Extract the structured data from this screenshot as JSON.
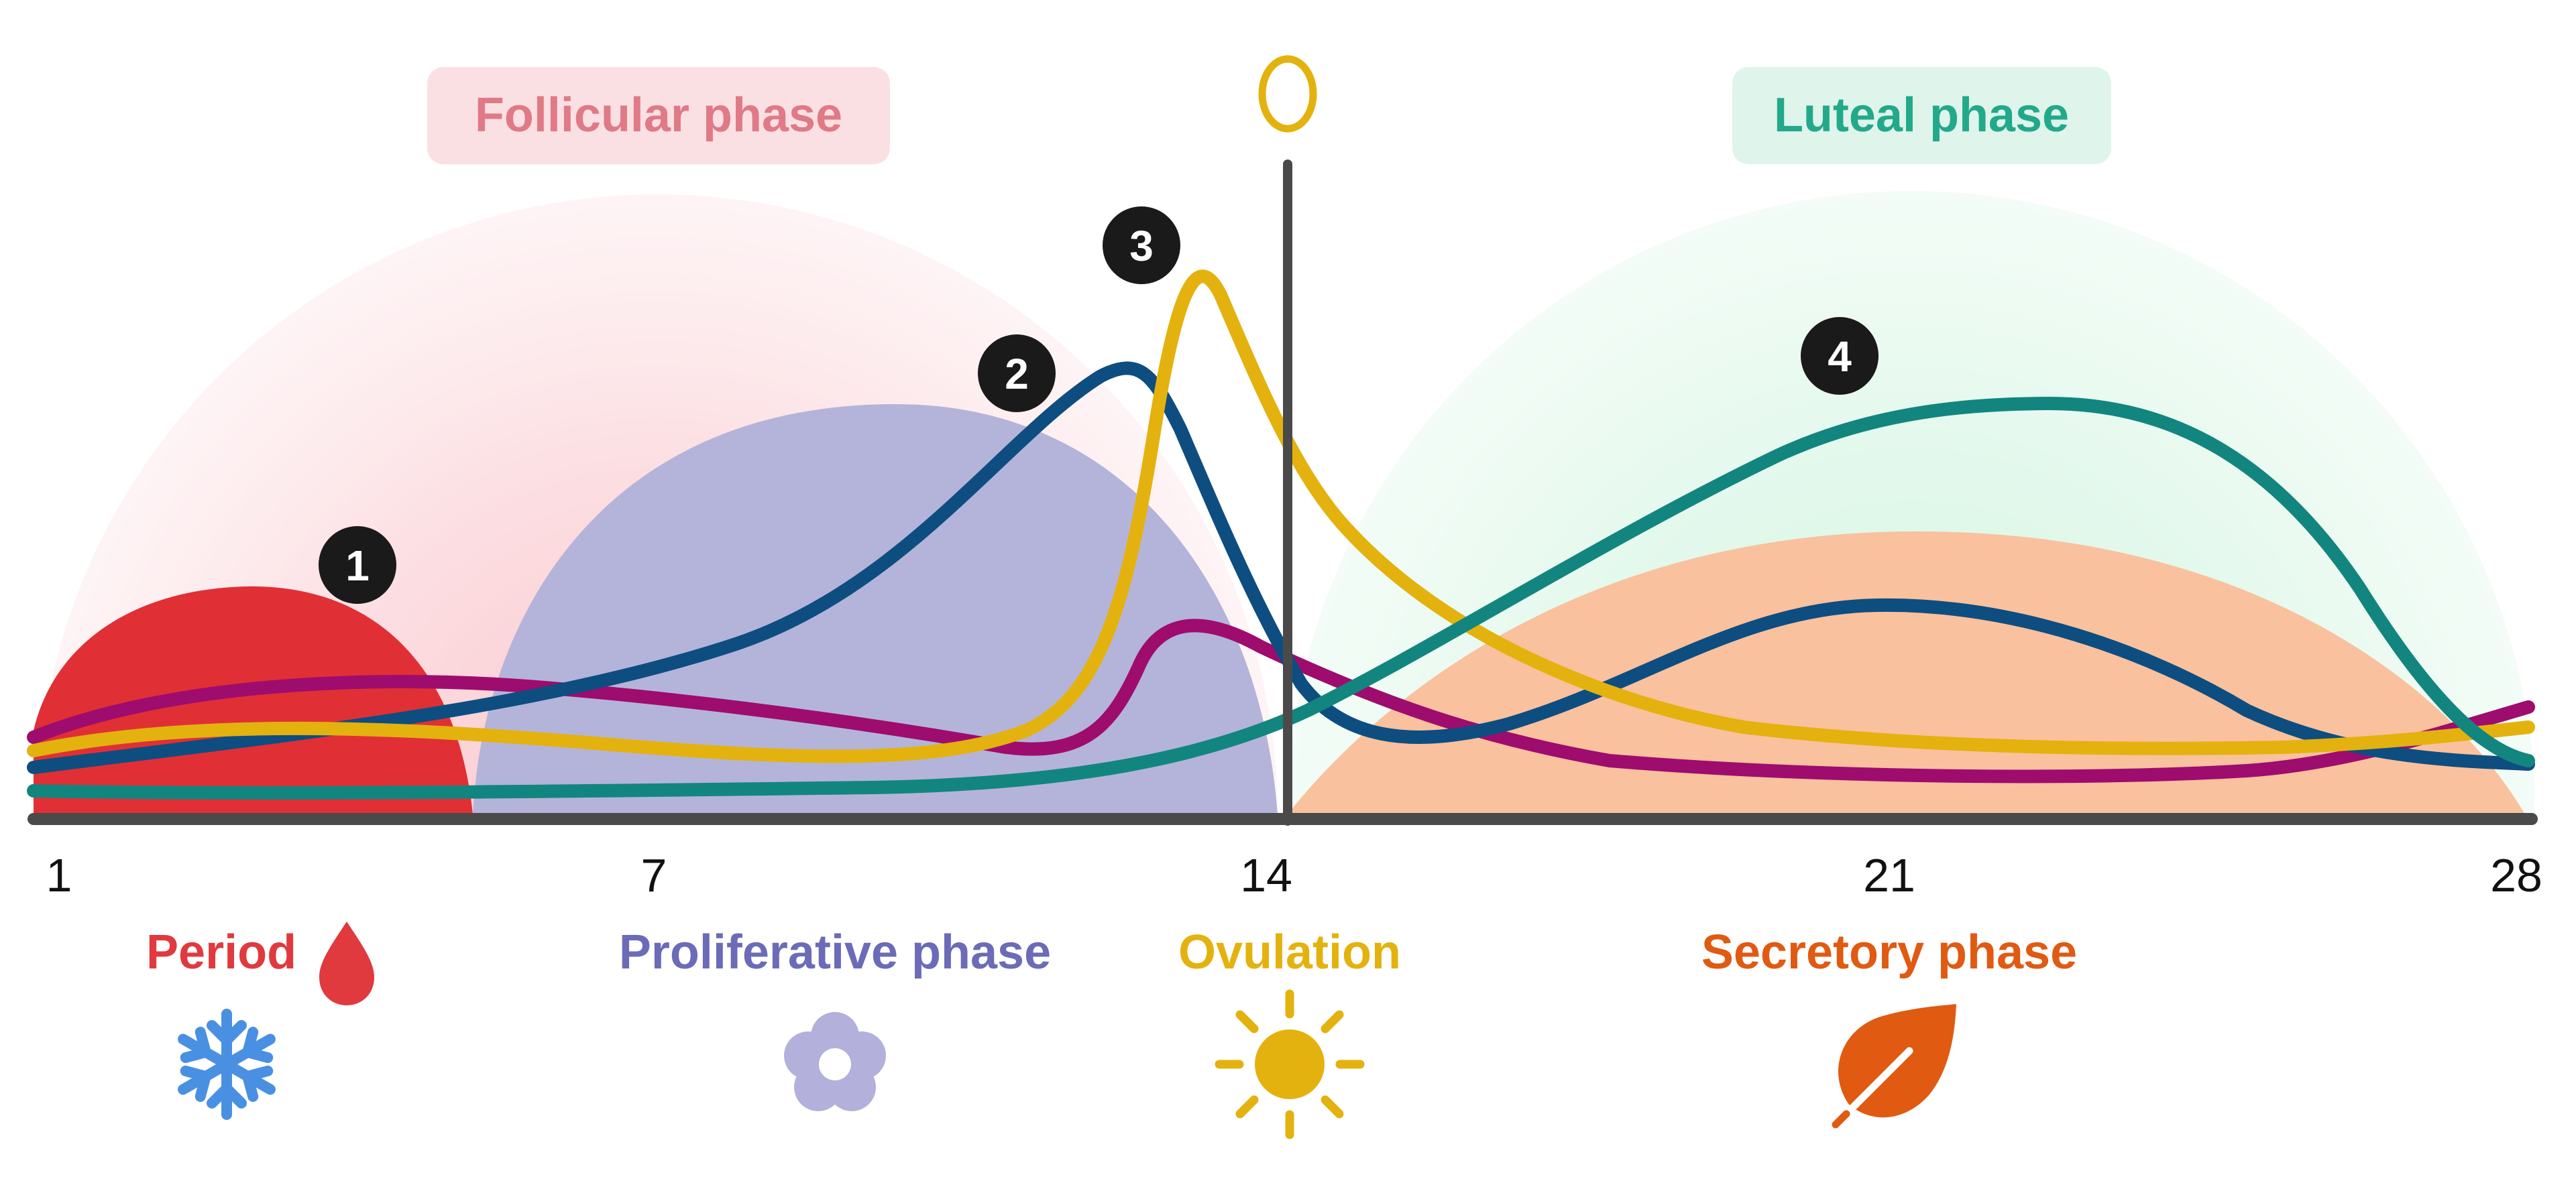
{
  "phases": {
    "follicular": {
      "label": "Follicular phase",
      "text_color": "#E07A86",
      "bg_color": "#FBE0E3"
    },
    "luteal": {
      "label": "Luteal phase",
      "text_color": "#22A98A",
      "bg_color": "#DFF4EB"
    }
  },
  "axis": {
    "ticks": [
      "1",
      "7",
      "14",
      "21",
      "28"
    ]
  },
  "markers": [
    "1",
    "2",
    "3",
    "4"
  ],
  "stages": {
    "period": {
      "label": "Period",
      "color": "#E03A3E",
      "icon": "blood-drop-icon"
    },
    "proliferative": {
      "label": "Proliferative phase",
      "color": "#6B6BB8",
      "icon": "flower-icon"
    },
    "ovulation": {
      "label": "Ovulation",
      "color": "#E3B20E",
      "icon": "sun-icon"
    },
    "secretory": {
      "label": "Secretory phase",
      "color": "#E05A12",
      "icon": "leaf-icon"
    }
  },
  "season_icons": {
    "period": {
      "icon": "snowflake-icon",
      "color": "#4A90E2"
    },
    "proliferative": {
      "icon": "flower-icon",
      "color": "#B3B0DC"
    },
    "ovulation": {
      "icon": "sun-icon",
      "color": "#E3B20E"
    },
    "secretory": {
      "icon": "leaf-icon",
      "color": "#E05A12"
    }
  },
  "top_icon": {
    "icon": "egg-icon",
    "color": "#E3B20E"
  },
  "curve_colors": {
    "magenta": "#9E0C6E",
    "navy": "#0E4D80",
    "gold": "#E3B20E",
    "teal": "#13857F"
  },
  "region_colors": {
    "period_fill": "#E03035",
    "proliferative_fill": "#B4B4DA",
    "secretory_fill": "#F9C19D",
    "follicular_glow": "#FAD2D7",
    "luteal_glow": "#DDF7E8",
    "axis": "#4A4A4A"
  }
}
